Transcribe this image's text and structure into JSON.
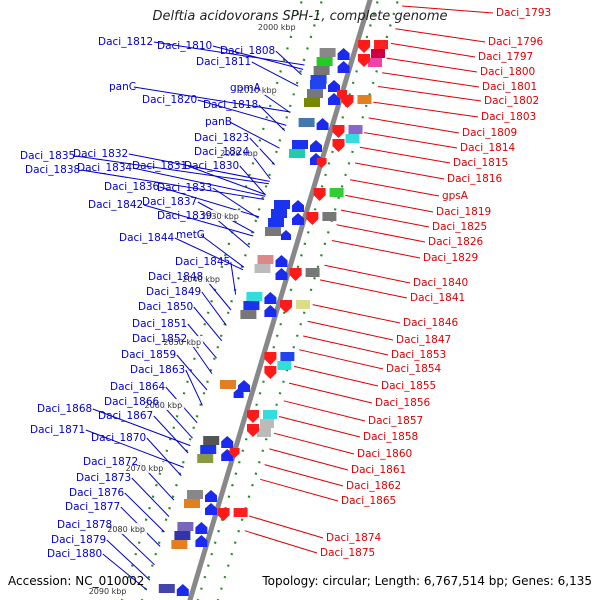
{
  "title": "Delftia acidovorans SPH-1, complete genome",
  "accession": "Accession: NC_010002",
  "topology": "Topology: circular; Length: 6,767,514 bp; Genes: 6,135",
  "colors": {
    "left_labels": "#0000cc",
    "right_labels": "#dd0000",
    "backbone": "#888888",
    "ticks": "#2a8a2a"
  },
  "scale": {
    "ticks": [
      {
        "label": "2000 kbp"
      },
      {
        "label": "2010 kbp"
      },
      {
        "label": "2020 kbp"
      },
      {
        "label": "2030 kbp"
      },
      {
        "label": "2040 kbp"
      },
      {
        "label": "2050 kbp"
      },
      {
        "label": "2060 kbp"
      },
      {
        "label": "2070 kbp"
      },
      {
        "label": "2080 kbp"
      },
      {
        "label": "2090 kbp"
      }
    ]
  },
  "left_genes": [
    "Daci_1812",
    "Daci_1810",
    "Daci_1808",
    "Daci_1811",
    "gpmA",
    "panC",
    "Daci_1820",
    "Daci_1818",
    "panB",
    "Daci_1823",
    "Daci_1824",
    "Daci_1832",
    "Daci_1835",
    "Daci_1834",
    "Daci_1831",
    "Daci_1830",
    "Daci_1838",
    "Daci_1836",
    "Daci_1833",
    "Daci_1837",
    "Daci_1842",
    "Daci_1839",
    "Daci_1844",
    "metG",
    "Daci_1845",
    "Daci_1848",
    "Daci_1849",
    "Daci_1850",
    "Daci_1851",
    "Daci_1852",
    "Daci_1859",
    "Daci_1863",
    "Daci_1864",
    "Daci_1866",
    "Daci_1868",
    "Daci_1867",
    "Daci_1871",
    "Daci_1870",
    "Daci_1872",
    "Daci_1873",
    "Daci_1876",
    "Daci_1877",
    "Daci_1878",
    "Daci_1879",
    "Daci_1880"
  ],
  "right_genes": [
    "Daci_1793",
    "Daci_1796",
    "Daci_1797",
    "Daci_1800",
    "Daci_1801",
    "Daci_1802",
    "Daci_1803",
    "Daci_1809",
    "Daci_1814",
    "Daci_1815",
    "Daci_1816",
    "gpsA",
    "Daci_1819",
    "Daci_1825",
    "Daci_1826",
    "Daci_1829",
    "Daci_1840",
    "Daci_1841",
    "Daci_1846",
    "Daci_1847",
    "Daci_1853",
    "Daci_1854",
    "Daci_1855",
    "Daci_1856",
    "Daci_1857",
    "Daci_1858",
    "Daci_1860",
    "Daci_1861",
    "Daci_1862",
    "Daci_1865",
    "Daci_1874",
    "Daci_1875"
  ]
}
